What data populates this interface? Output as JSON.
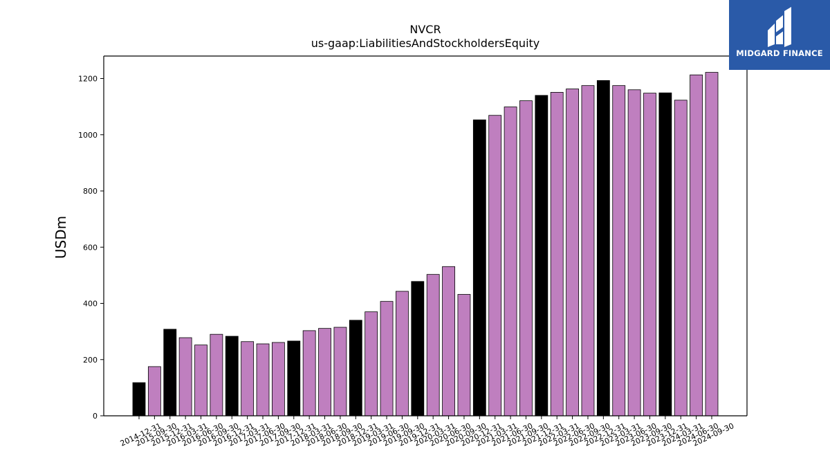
{
  "chart_data": {
    "type": "bar",
    "title": "NVCR",
    "subtitle": "us-gaap:LiabilitiesAndStockholdersEquity",
    "xlabel": "",
    "ylabel": "USDm",
    "ylim": [
      0,
      1280
    ],
    "yticks": [
      0,
      200,
      400,
      600,
      800,
      1000,
      1200
    ],
    "grid": false,
    "colors": {
      "annual": "#000000",
      "quarterly": "#bf7fbf",
      "edge": "#000000"
    },
    "categories": [
      "2014-12-31",
      "2015-09-30",
      "2015-12-31",
      "2016-03-31",
      "2016-06-30",
      "2016-09-30",
      "2016-12-31",
      "2017-03-31",
      "2017-06-30",
      "2017-09-30",
      "2017-12-31",
      "2018-03-31",
      "2018-06-30",
      "2018-09-30",
      "2018-12-31",
      "2019-03-31",
      "2019-06-30",
      "2019-09-30",
      "2019-12-31",
      "2020-03-31",
      "2020-06-30",
      "2020-09-30",
      "2020-12-31",
      "2021-03-31",
      "2021-06-30",
      "2021-09-30",
      "2021-12-31",
      "2022-03-31",
      "2022-06-30",
      "2022-09-30",
      "2022-12-31",
      "2023-03-31",
      "2023-06-30",
      "2023-09-30",
      "2023-12-31",
      "2024-03-31",
      "2024-06-30",
      "2024-09-30"
    ],
    "values": [
      118,
      175,
      308,
      278,
      252,
      290,
      283,
      264,
      256,
      261,
      266,
      303,
      311,
      315,
      340,
      370,
      407,
      443,
      478,
      503,
      531,
      432,
      1053,
      1069,
      1099,
      1121,
      1140,
      1151,
      1163,
      1175,
      1193,
      1175,
      1160,
      1148,
      1149,
      1123,
      1213,
      1222
    ],
    "period_type": [
      "annual",
      "quarterly",
      "annual",
      "quarterly",
      "quarterly",
      "quarterly",
      "annual",
      "quarterly",
      "quarterly",
      "quarterly",
      "annual",
      "quarterly",
      "quarterly",
      "quarterly",
      "annual",
      "quarterly",
      "quarterly",
      "quarterly",
      "annual",
      "quarterly",
      "quarterly",
      "quarterly",
      "annual",
      "quarterly",
      "quarterly",
      "quarterly",
      "annual",
      "quarterly",
      "quarterly",
      "quarterly",
      "annual",
      "quarterly",
      "quarterly",
      "quarterly",
      "annual",
      "quarterly",
      "quarterly",
      "quarterly"
    ]
  },
  "branding": {
    "name": "MIDGARD FINANCE",
    "background": "#2a5aa8"
  }
}
